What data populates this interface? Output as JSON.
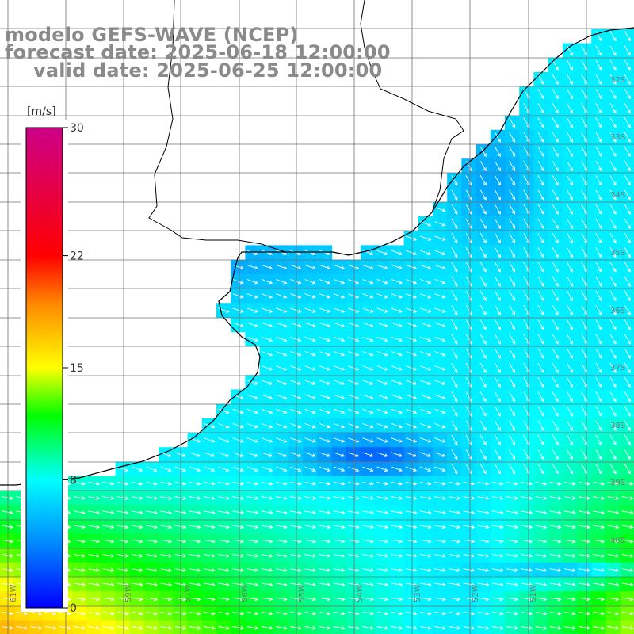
{
  "title": {
    "model": "modelo GEFS-WAVE (NCEP)",
    "forecast": "forecast date: 2025-06-18 12:00:00",
    "valid": "valid date: 2025-06-25 12:00:00"
  },
  "colorbar": {
    "unit": "[m/s]",
    "ticks": [
      {
        "value": 30,
        "label": "30"
      },
      {
        "value": 22,
        "label": "22"
      },
      {
        "value": 15,
        "label": "15"
      },
      {
        "value": 8,
        "label": "8"
      },
      {
        "value": 0,
        "label": "0"
      }
    ],
    "colors": [
      "#0000ff",
      "#0088ff",
      "#00ffff",
      "#00ff00",
      "#ffff00",
      "#ff8800",
      "#ff0000",
      "#cc0088"
    ]
  },
  "lon_labels": [
    "61W",
    "59W",
    "57W",
    "56W",
    "55W",
    "54W",
    "53W",
    "52W",
    "51W"
  ],
  "lat_labels": [
    "32S",
    "33S",
    "34S",
    "35S",
    "36S",
    "37S",
    "38S",
    "39S",
    "40S"
  ],
  "colors": {
    "land": "#ffffff",
    "coastline": "#000000",
    "grid": "#707070",
    "arrow": "#ffffff",
    "title": "#8a8a8a"
  }
}
